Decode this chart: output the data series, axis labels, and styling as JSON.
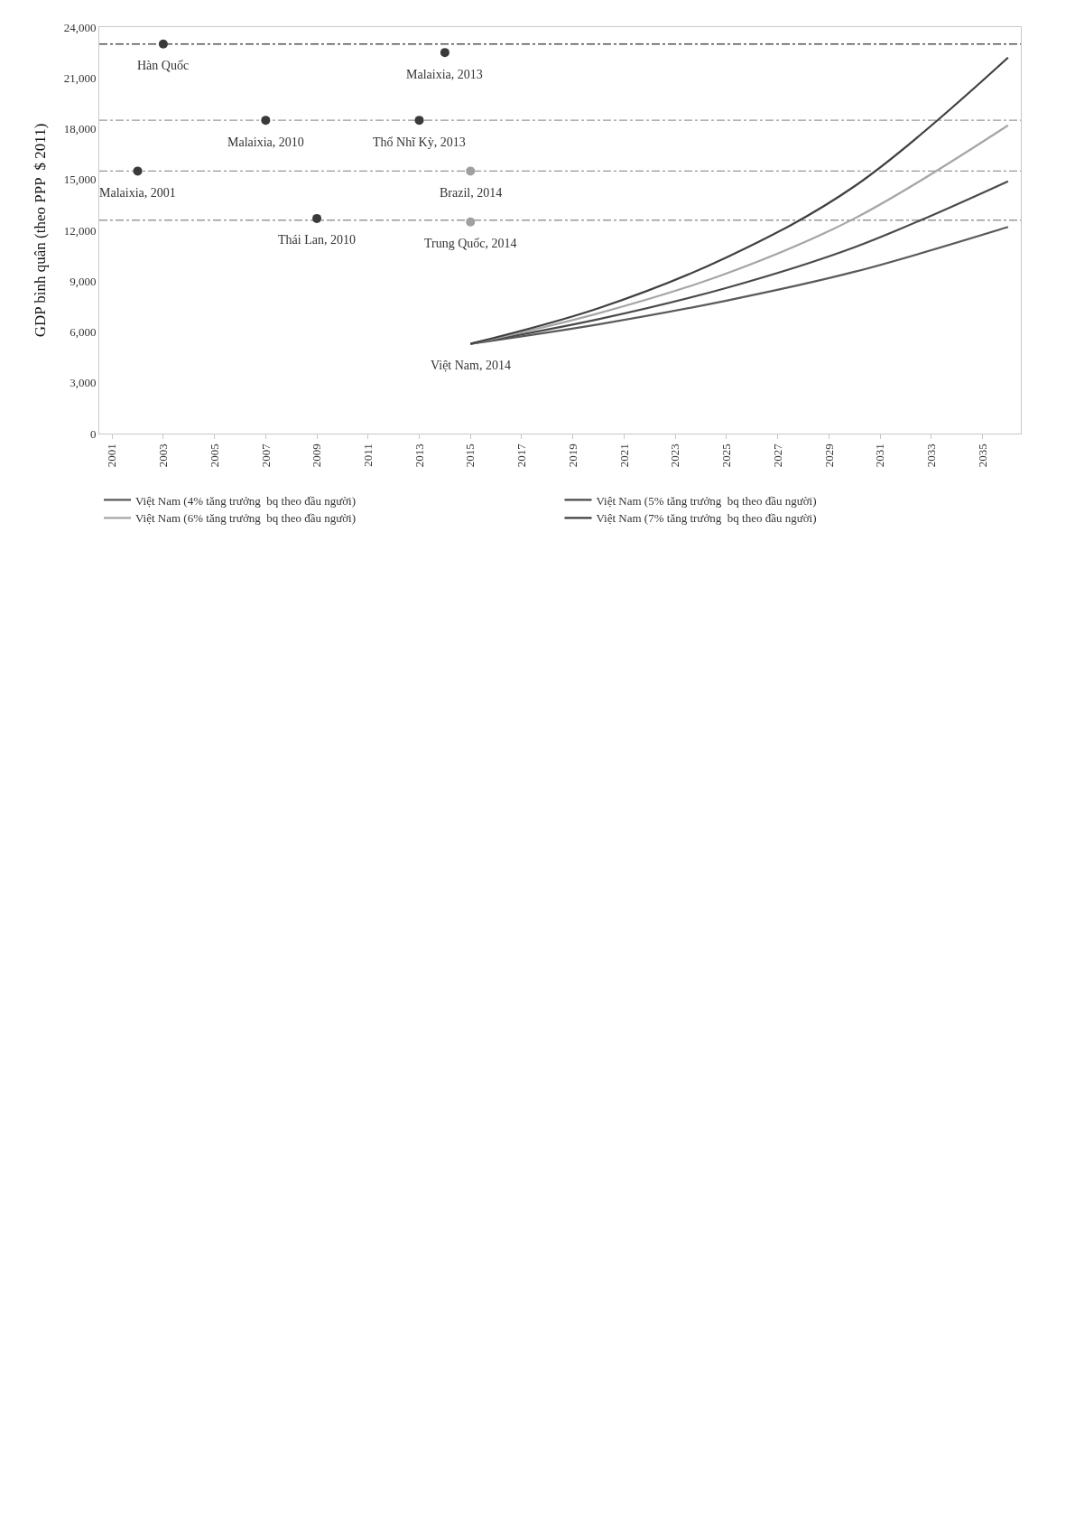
{
  "chart_data": {
    "type": "line",
    "ylabel": "GDP bình quân (theo PPP  $ 2011)",
    "x": [
      2015,
      2020,
      2025,
      2030,
      2036
    ],
    "xlim": [
      2000.5,
      2036.5
    ],
    "xticks": [
      2001,
      2003,
      2005,
      2007,
      2009,
      2011,
      2013,
      2015,
      2017,
      2019,
      2021,
      2023,
      2025,
      2027,
      2029,
      2031,
      2033,
      2035
    ],
    "ylim": [
      0,
      24000
    ],
    "yticks": [
      {
        "value": 0,
        "label": "0"
      },
      {
        "value": 3000,
        "label": "3,000"
      },
      {
        "value": 6000,
        "label": "6,000"
      },
      {
        "value": 9000,
        "label": "9,000"
      },
      {
        "value": 12000,
        "label": "12,000"
      },
      {
        "value": 15000,
        "label": "15,000"
      },
      {
        "value": 18000,
        "label": "18,000"
      },
      {
        "value": 21000,
        "label": "21,000"
      },
      {
        "value": 24000,
        "label": "24,000"
      }
    ],
    "series": [
      {
        "name": "Việt Nam (4% tăng trưởng  bq theo đầu người)",
        "color": "#5a5a5a",
        "values": [
          5300,
          6450,
          7850,
          9550,
          12200
        ]
      },
      {
        "name": "Việt Nam (5% tăng trưởng  bq theo đầu người)",
        "color": "#4a4a4a",
        "values": [
          5300,
          6750,
          8600,
          11000,
          14900
        ]
      },
      {
        "name": "Việt Nam (6% tăng trưởng  bq theo đầu người)",
        "color": "#a6a6a6",
        "values": [
          5300,
          7100,
          9450,
          12700,
          18200
        ]
      },
      {
        "name": "Việt Nam (7% tăng trưởng  bq theo đầu người)",
        "color": "#404040",
        "values": [
          5300,
          7400,
          10400,
          14600,
          22200
        ]
      },
      {
        "type": "scatter",
        "x": [
          2003,
          2014,
          2007,
          2013,
          2002,
          2009,
          2015,
          2015
        ],
        "values": [
          23000,
          22500,
          18500,
          18500,
          15500,
          12700,
          15500,
          12500
        ],
        "colors": [
          "#3a3a3a",
          "#3a3a3a",
          "#3a3a3a",
          "#3a3a3a",
          "#3a3a3a",
          "#3a3a3a",
          "#a0a0a0",
          "#a0a0a0"
        ],
        "marker": "circle"
      }
    ],
    "ref_lines": [
      {
        "axis": "y",
        "value": 23000,
        "color": "#555555",
        "line_style": "dashdot"
      },
      {
        "axis": "y",
        "value": 18500,
        "color": "#999999",
        "line_style": "dashdot"
      },
      {
        "axis": "y",
        "value": 15500,
        "color": "#999999",
        "line_style": "dashdot"
      },
      {
        "axis": "y",
        "value": 12600,
        "color": "#999999",
        "line_style": "dashdot"
      }
    ],
    "annotations": [
      {
        "text": "Hàn Quốc",
        "x": 2003,
        "y": 23000
      },
      {
        "text": "Malaixia, 2013",
        "x": 2014,
        "y": 22500
      },
      {
        "text": "Malaixia, 2010",
        "x": 2007,
        "y": 18500
      },
      {
        "text": "Thổ Nhĩ Kỳ, 2013",
        "x": 2013,
        "y": 18500
      },
      {
        "text": "Malaixia, 2001",
        "x": 2002,
        "y": 15500
      },
      {
        "text": "Brazil, 2014",
        "x": 2015,
        "y": 15500
      },
      {
        "text": "Thái Lan, 2010",
        "x": 2009,
        "y": 12700
      },
      {
        "text": "Trung Quốc, 2014",
        "x": 2015,
        "y": 12500
      },
      {
        "text": "Việt Nam, 2014",
        "x": 2015,
        "y": 5300
      }
    ],
    "legend": "bottom",
    "grid": false,
    "marker": "none",
    "line_style": "solid"
  }
}
